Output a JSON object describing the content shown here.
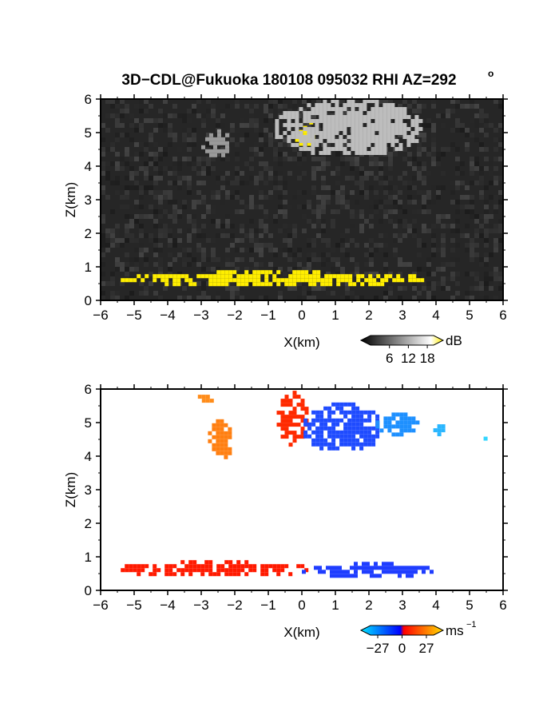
{
  "title": "3D−CDL@Fukuoka 180108 095032 RHI AZ=292",
  "title_suffix": "o",
  "chart_data": [
    {
      "type": "heatmap",
      "panel": "reflectivity",
      "xlabel": "X(km)",
      "ylabel": "Z(km)",
      "xlim": [
        -6,
        6
      ],
      "ylim": [
        0,
        6
      ],
      "xticks": [
        "−6",
        "−5",
        "−4",
        "−3",
        "−2",
        "−1",
        "0",
        "1",
        "2",
        "3",
        "4",
        "5",
        "6"
      ],
      "yticks": [
        "0",
        "1",
        "2",
        "3",
        "4",
        "5",
        "6"
      ],
      "colorbar": {
        "unit": "dB",
        "ticks": [
          "6",
          "12",
          "18"
        ],
        "tick_values": [
          6,
          12,
          18
        ],
        "range": [
          0,
          20
        ],
        "colors": [
          "#000000",
          "#ffffff",
          "#ffee00"
        ]
      },
      "background_color": "#262626",
      "features": [
        {
          "name": "strong echo aloft",
          "x": [
            -0.2,
            0.3
          ],
          "z": [
            4.6,
            5.2
          ],
          "level": "high",
          "color": "#ffee00"
        },
        {
          "name": "strong echo aloft 2",
          "x": [
            0.1,
            0.25
          ],
          "z": [
            5.3,
            5.6
          ],
          "level": "high",
          "color": "#ffee00"
        },
        {
          "name": "low-level echo",
          "x": [
            -5.4,
            3.6
          ],
          "z": [
            0.5,
            0.9
          ],
          "level": "high",
          "color": "#ffee00"
        },
        {
          "name": "cloud aloft",
          "x": [
            -0.8,
            3.5
          ],
          "z": [
            4.4,
            6.0
          ],
          "level": "medium",
          "color": "#bdbdbd"
        },
        {
          "name": "cloud aloft left",
          "x": [
            -3.0,
            -2.2
          ],
          "z": [
            4.3,
            5.1
          ],
          "level": "medium",
          "color": "#9a9a9a"
        }
      ]
    },
    {
      "type": "heatmap",
      "panel": "doppler velocity",
      "xlabel": "X(km)",
      "ylabel": "Z(km)",
      "xlim": [
        -6,
        6
      ],
      "ylim": [
        0,
        6
      ],
      "xticks": [
        "−6",
        "−5",
        "−4",
        "−3",
        "−2",
        "−1",
        "0",
        "1",
        "2",
        "3",
        "4",
        "5",
        "6"
      ],
      "yticks": [
        "0",
        "1",
        "2",
        "3",
        "4",
        "5",
        "6"
      ],
      "colorbar": {
        "unit": "ms",
        "unit_exp": "−1",
        "ticks": [
          "−27",
          "0",
          "27"
        ],
        "tick_values": [
          -27,
          0,
          27
        ],
        "range": [
          -35,
          35
        ],
        "colors": [
          "#00e5ff",
          "#0000ff",
          "#ff0000",
          "#ffdd00"
        ]
      },
      "features": [
        {
          "name": "receding aloft",
          "x": [
            -0.75,
            0.1
          ],
          "z": [
            4.4,
            5.95
          ],
          "velocity": 14,
          "color": "#ff2a00"
        },
        {
          "name": "approaching aloft",
          "x": [
            0.05,
            2.3
          ],
          "z": [
            4.2,
            5.6
          ],
          "velocity": -14,
          "color": "#1f4bff"
        },
        {
          "name": "approaching aloft east",
          "x": [
            2.2,
            3.5
          ],
          "z": [
            4.7,
            5.3
          ],
          "velocity": -20,
          "color": "#1e90ff"
        },
        {
          "name": "approaching east patch",
          "x": [
            3.8,
            4.4
          ],
          "z": [
            4.7,
            4.95
          ],
          "velocity": -25,
          "color": "#29b6ff"
        },
        {
          "name": "approaching far east",
          "x": [
            5.3,
            5.6
          ],
          "z": [
            4.55,
            4.7
          ],
          "velocity": -27,
          "color": "#33d6ff"
        },
        {
          "name": "receding cloud left",
          "x": [
            -2.8,
            -2.1
          ],
          "z": [
            4.0,
            5.1
          ],
          "velocity": 22,
          "color": "#ff7f11"
        },
        {
          "name": "receding cloud top",
          "x": [
            -3.1,
            -2.7
          ],
          "z": [
            5.6,
            5.95
          ],
          "velocity": 25,
          "color": "#ff8c1a"
        },
        {
          "name": "low-level receding",
          "x": [
            -5.4,
            0.1
          ],
          "z": [
            0.45,
            0.9
          ],
          "velocity": 10,
          "color": "#ff1a00"
        },
        {
          "name": "low-level approaching",
          "x": [
            0.0,
            3.9
          ],
          "z": [
            0.45,
            0.85
          ],
          "velocity": -12,
          "color": "#1f3dff"
        }
      ]
    }
  ]
}
